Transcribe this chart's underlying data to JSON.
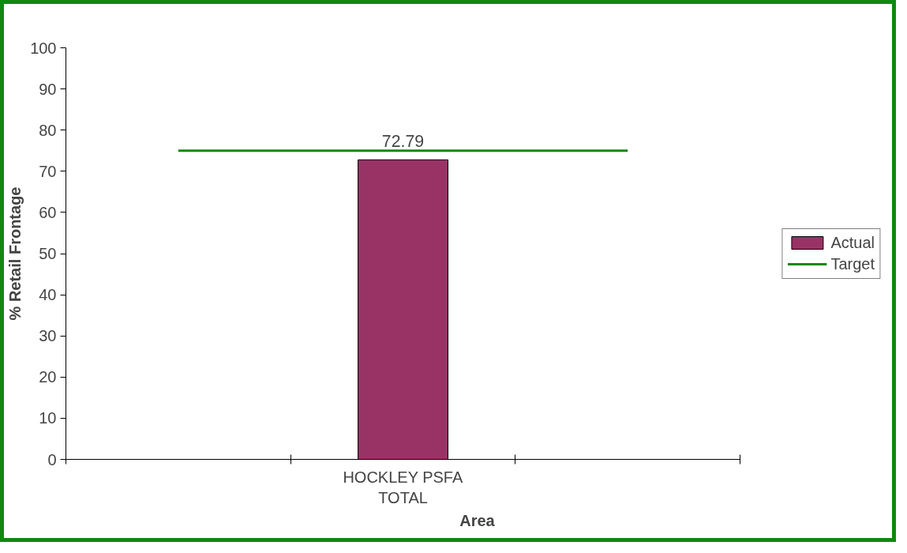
{
  "chart_data": {
    "type": "bar",
    "categories": [
      null,
      "HOCKLEY PSFA TOTAL",
      null
    ],
    "xlabel": "Area",
    "ylabel": "% Retail Frontage",
    "ylim": [
      0,
      100
    ],
    "yticks": [
      0,
      10,
      20,
      30,
      40,
      50,
      60,
      70,
      80,
      90,
      100
    ],
    "grid": false,
    "legend": "right",
    "series": [
      {
        "name": "Actual",
        "color": "#993366",
        "values": [
          null,
          72.79,
          null
        ],
        "value_labels": [
          null,
          "72.79",
          null
        ]
      },
      {
        "name": "Target",
        "type": "line",
        "color": "#118811",
        "values": [
          75,
          75,
          75
        ]
      }
    ]
  }
}
